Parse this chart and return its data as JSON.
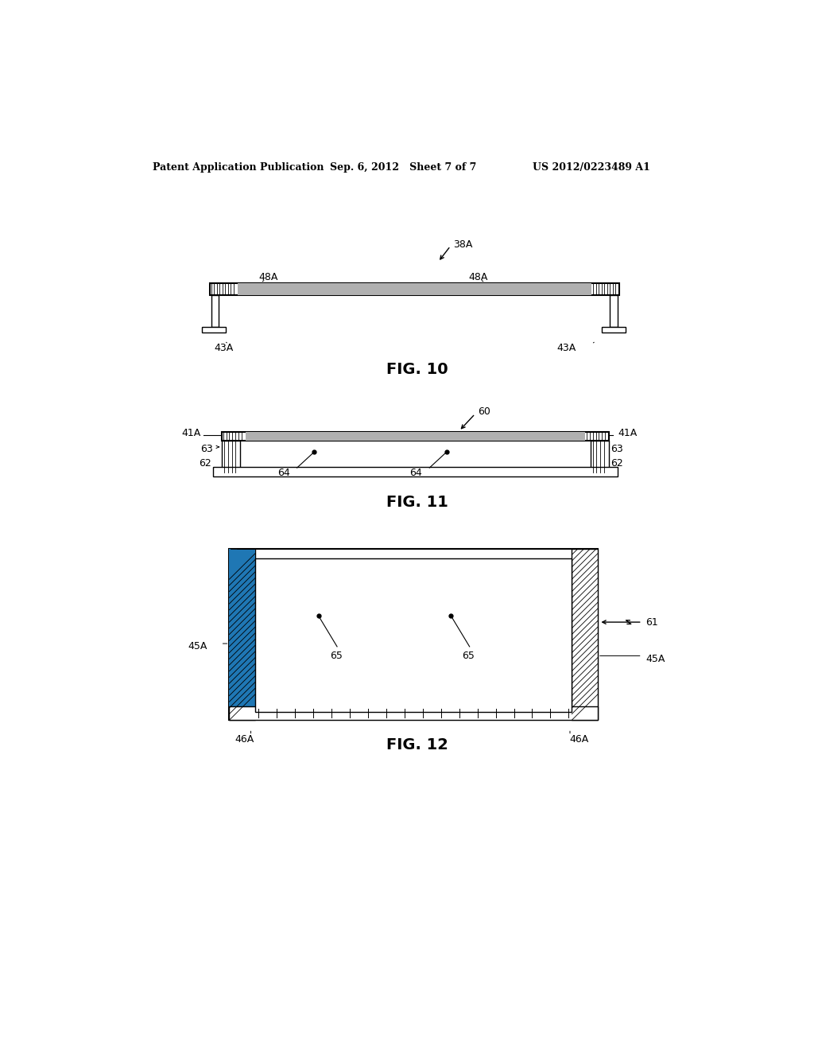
{
  "bg_color": "#ffffff",
  "header_left": "Patent Application Publication",
  "header_center": "Sep. 6, 2012   Sheet 7 of 7",
  "header_right": "US 2012/0223489 A1",
  "fig10_label": "FIG. 10",
  "fig11_label": "FIG. 11",
  "fig12_label": "FIG. 12",
  "black": "#000000",
  "gray": "#b0b0b0"
}
